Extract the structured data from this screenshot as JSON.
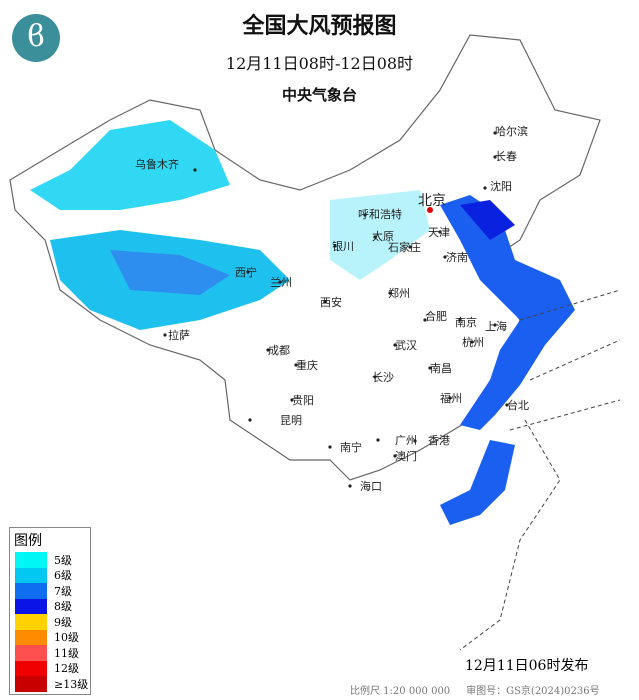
{
  "title": "全国大风预报图",
  "period": "12月11日08时-12日08时",
  "issuer": "中央气象台",
  "logo_icon": "cma-logo-icon",
  "legend": {
    "title": "图例",
    "items": [
      {
        "label": "5级",
        "color": "#00f5f5"
      },
      {
        "label": "6级",
        "color": "#00c8f0"
      },
      {
        "label": "7级",
        "color": "#0f6ef0"
      },
      {
        "label": "8级",
        "color": "#0a14e6"
      },
      {
        "label": "9级",
        "color": "#ffd200"
      },
      {
        "label": "10级",
        "color": "#ff8c00"
      },
      {
        "label": "11级",
        "color": "#ff5050"
      },
      {
        "label": "12级",
        "color": "#f00000"
      },
      {
        "label": "≥13级",
        "color": "#c80000"
      }
    ]
  },
  "cities": [
    {
      "name": "乌鲁木齐",
      "capital": false
    },
    {
      "name": "哈尔滨"
    },
    {
      "name": "长春"
    },
    {
      "name": "沈阳"
    },
    {
      "name": "北京",
      "capital": true
    },
    {
      "name": "天津"
    },
    {
      "name": "呼和浩特"
    },
    {
      "name": "太原"
    },
    {
      "name": "石家庄"
    },
    {
      "name": "银川"
    },
    {
      "name": "西宁"
    },
    {
      "name": "兰州"
    },
    {
      "name": "济南"
    },
    {
      "name": "西安"
    },
    {
      "name": "郑州"
    },
    {
      "name": "合肥"
    },
    {
      "name": "南京"
    },
    {
      "name": "上海"
    },
    {
      "name": "杭州"
    },
    {
      "name": "拉萨"
    },
    {
      "name": "成都"
    },
    {
      "name": "重庆"
    },
    {
      "name": "武汉"
    },
    {
      "name": "长沙"
    },
    {
      "name": "南昌"
    },
    {
      "name": "福州"
    },
    {
      "name": "台北"
    },
    {
      "name": "贵阳"
    },
    {
      "name": "昆明"
    },
    {
      "name": "南宁"
    },
    {
      "name": "广州"
    },
    {
      "name": "香港"
    },
    {
      "name": "澳门"
    },
    {
      "name": "海口"
    }
  ],
  "issue_time": "12月11日06时发布",
  "scale": "比例尺 1:20 000 000",
  "approval": "审图号：GS京(2024)0236号"
}
